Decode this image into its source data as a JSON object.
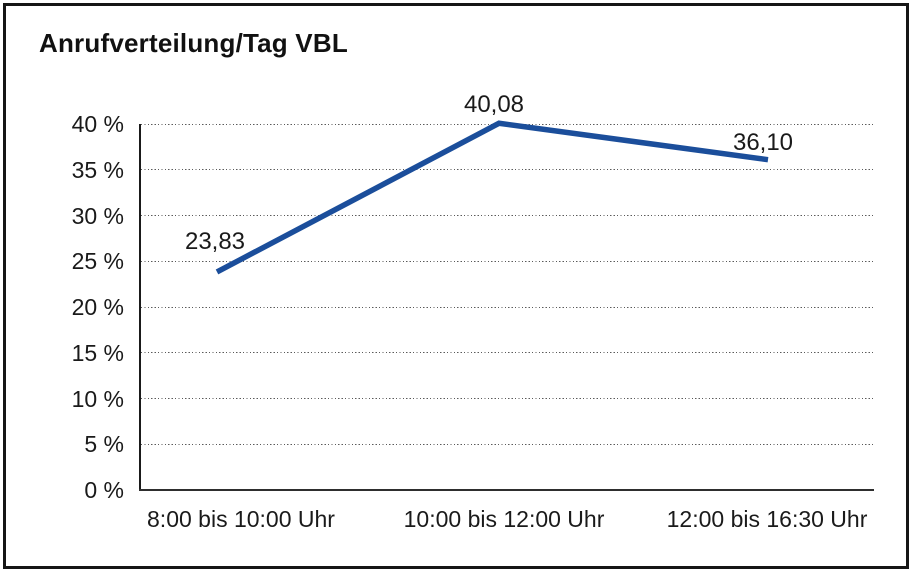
{
  "title": "Anrufverteilung/Tag VBL",
  "colors": {
    "line": "#1B4E9B",
    "axis": "#1a1a1a",
    "grid_dots": "#5a5a5a",
    "frame_border": "#161616",
    "background": "#ffffff",
    "text": "#1a1a1a"
  },
  "chart_data": {
    "type": "line",
    "title": "Anrufverteilung/Tag VBL",
    "categories": [
      "8:00 bis 10:00 Uhr",
      "10:00 bis 12:00 Uhr",
      "12:00 bis 16:30 Uhr"
    ],
    "values": [
      23.83,
      40.08,
      36.1
    ],
    "point_labels": [
      "23,83",
      "40,08",
      "36,10"
    ],
    "y_ticks": [
      "0 %",
      "5 %",
      "10 %",
      "15 %",
      "20 %",
      "25 %",
      "30 %",
      "35 %",
      "40 %"
    ],
    "y_tick_values": [
      0,
      5,
      10,
      15,
      20,
      25,
      30,
      35,
      40
    ],
    "ylim": [
      0,
      40
    ],
    "xlabel": "",
    "ylabel": "",
    "grid": "horizontal-dotted",
    "legend": "none",
    "line_color": "#1B4E9B"
  }
}
